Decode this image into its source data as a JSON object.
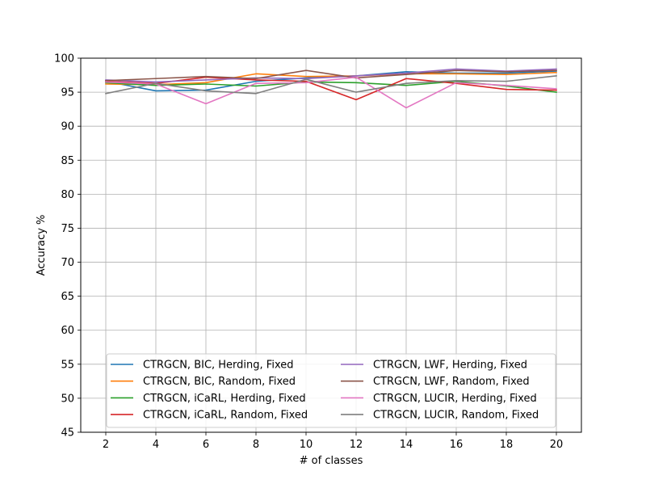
{
  "chart_data": {
    "type": "line",
    "title": "",
    "xlabel": "# of classes",
    "ylabel": "Accuracy %",
    "x": [
      2,
      4,
      6,
      8,
      10,
      12,
      14,
      16,
      18,
      20
    ],
    "xticks": [
      "2",
      "4",
      "6",
      "8",
      "10",
      "12",
      "14",
      "16",
      "18",
      "20"
    ],
    "xlim": [
      1,
      21
    ],
    "ylim": [
      45,
      100
    ],
    "yticks": [
      "45",
      "50",
      "55",
      "60",
      "65",
      "70",
      "75",
      "80",
      "85",
      "90",
      "95",
      "100"
    ],
    "grid": true,
    "legend": {
      "placement": "lower-center",
      "columns": 2
    },
    "series": [
      {
        "name": "CTRGCN, BIC, Herding, Fixed",
        "color": "#1f77b4",
        "values": [
          96.6,
          95.2,
          95.3,
          96.6,
          97.1,
          97.4,
          98.0,
          97.8,
          97.8,
          98.1
        ]
      },
      {
        "name": "CTRGCN, BIC, Random, Fixed",
        "color": "#ff7f0e",
        "values": [
          96.2,
          96.1,
          96.4,
          97.7,
          97.3,
          97.4,
          97.7,
          97.7,
          97.6,
          97.9
        ]
      },
      {
        "name": "CTRGCN, iCaRL, Herding, Fixed",
        "color": "#2ca02c",
        "values": [
          96.4,
          96.0,
          96.2,
          95.9,
          96.5,
          96.4,
          96.0,
          96.6,
          95.9,
          95.0
        ]
      },
      {
        "name": "CTRGCN, iCaRL, Random, Fixed",
        "color": "#d62728",
        "values": [
          96.6,
          96.3,
          97.2,
          96.8,
          96.6,
          93.9,
          97.0,
          96.3,
          95.4,
          95.3
        ]
      },
      {
        "name": "CTRGCN, LWF, Herding, Fixed",
        "color": "#9467bd",
        "values": [
          96.8,
          96.5,
          96.8,
          97.1,
          97.0,
          97.4,
          97.8,
          98.4,
          98.1,
          98.4
        ]
      },
      {
        "name": "CTRGCN, LWF, Random, Fixed",
        "color": "#8c564b",
        "values": [
          96.7,
          97.0,
          97.3,
          97.0,
          98.2,
          97.1,
          97.6,
          98.2,
          98.0,
          98.2
        ]
      },
      {
        "name": "CTRGCN, LUCIR, Herding, Fixed",
        "color": "#e377c2",
        "values": [
          96.5,
          96.2,
          93.3,
          96.3,
          96.4,
          97.2,
          92.7,
          96.4,
          96.0,
          95.5
        ]
      },
      {
        "name": "CTRGCN, LUCIR, Random, Fixed",
        "color": "#7f7f7f",
        "values": [
          94.8,
          96.3,
          95.2,
          94.8,
          96.9,
          95.0,
          96.3,
          96.7,
          96.6,
          97.4
        ]
      }
    ]
  }
}
